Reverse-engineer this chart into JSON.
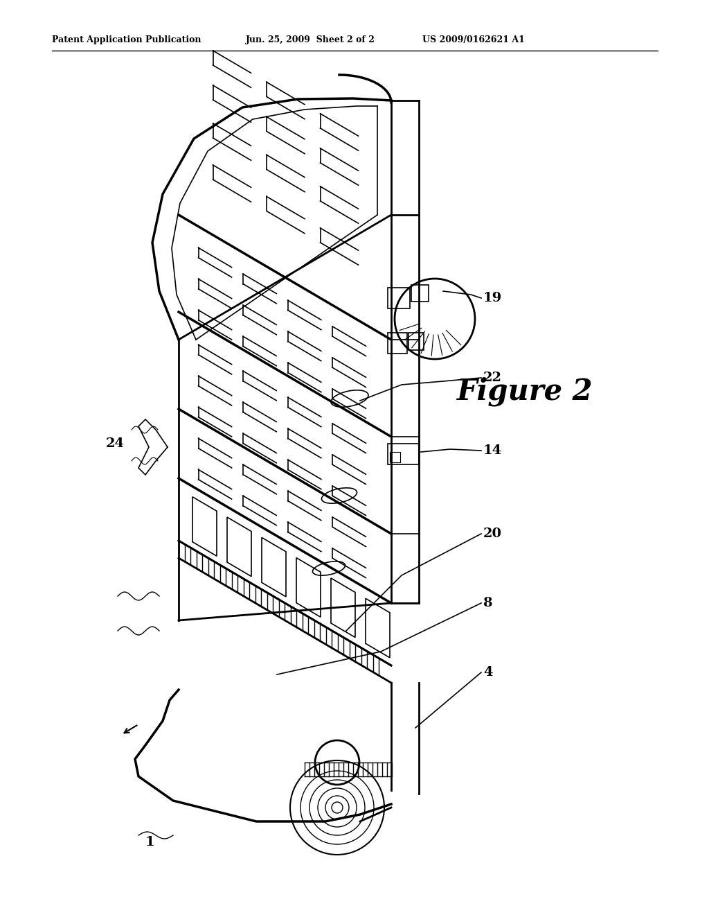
{
  "background_color": "#ffffff",
  "header_left": "Patent Application Publication",
  "header_mid": "Jun. 25, 2009  Sheet 2 of 2",
  "header_right": "US 2009/0162621 A1",
  "figure_label": "Figure 2",
  "lw_main": 2.0,
  "lw_thin": 1.2,
  "lw_thick": 2.5
}
